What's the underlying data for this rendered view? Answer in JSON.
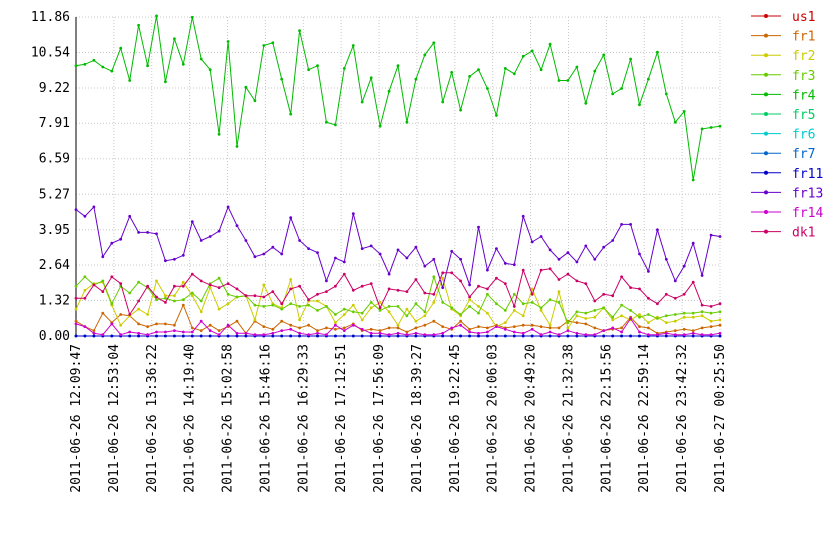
{
  "chart_data": {
    "type": "line",
    "title": "",
    "xlabel": "",
    "ylabel": "",
    "ylim": [
      0,
      11.86
    ],
    "yticks": [
      "0.00",
      "1.32",
      "2.64",
      "3.95",
      "5.27",
      "6.59",
      "7.91",
      "9.22",
      "10.54",
      "11.86"
    ],
    "ytick_values": [
      0,
      1.32,
      2.64,
      3.95,
      5.27,
      6.59,
      7.91,
      9.22,
      10.54,
      11.86
    ],
    "xticks": [
      "2011-06-26 12:09:47",
      "2011-06-26 12:53:04",
      "2011-06-26 13:36:22",
      "2011-06-26 14:19:40",
      "2011-06-26 15:02:58",
      "2011-06-26 15:46:16",
      "2011-06-26 16:29:33",
      "2011-06-26 17:12:51",
      "2011-06-26 17:56:09",
      "2011-06-26 18:39:27",
      "2011-06-26 19:22:45",
      "2011-06-26 20:06:03",
      "2011-06-26 20:49:20",
      "2011-06-26 21:32:38",
      "2011-06-26 22:15:56",
      "2011-06-26 22:59:14",
      "2011-06-26 23:42:32",
      "2011-06-27 00:25:50"
    ],
    "grid": true,
    "legend_position": "right",
    "points_per_series": 73,
    "series": [
      {
        "name": "us1",
        "color": "#cc0000",
        "values": [
          0,
          0,
          0,
          0,
          0,
          0,
          0,
          0,
          0,
          0,
          0,
          0,
          0,
          0,
          0,
          0,
          0,
          0,
          0,
          0,
          0,
          0,
          0,
          0,
          0,
          0,
          0,
          0,
          0,
          0,
          0,
          0,
          0,
          0,
          0,
          0,
          0,
          0,
          0,
          0,
          0,
          0,
          0,
          0,
          0,
          0,
          0,
          0,
          0,
          0,
          0,
          0,
          0,
          0,
          0,
          0,
          0,
          0,
          0,
          0,
          0,
          0,
          0,
          0,
          0,
          0,
          0,
          0,
          0,
          0,
          0,
          0,
          0
        ]
      },
      {
        "name": "fr1",
        "color": "#cc6600",
        "values": [
          0.55,
          0.35,
          0.2,
          0.85,
          0.5,
          0.8,
          0.75,
          0.45,
          0.35,
          0.45,
          0.45,
          0.4,
          1.15,
          0.3,
          0.2,
          0.4,
          0.2,
          0.35,
          0.55,
          0.1,
          0.55,
          0.35,
          0.25,
          0.55,
          0.4,
          0.3,
          0.4,
          0.2,
          0.3,
          0.25,
          0.3,
          0.45,
          0.2,
          0.25,
          0.2,
          0.3,
          0.3,
          0.15,
          0.3,
          0.4,
          0.55,
          0.35,
          0.25,
          0.55,
          0.25,
          0.35,
          0.3,
          0.4,
          0.3,
          0.35,
          0.4,
          0.4,
          0.35,
          0.3,
          0.3,
          0.55,
          0.5,
          0.45,
          0.3,
          0.2,
          0.25,
          0.3,
          0.7,
          0.35,
          0.3,
          0.1,
          0.15,
          0.2,
          0.25,
          0.2,
          0.3,
          0.35,
          0.4
        ]
      },
      {
        "name": "fr2",
        "color": "#cccc00",
        "values": [
          1.0,
          1.7,
          1.95,
          2.0,
          1.15,
          0.4,
          0.75,
          1.0,
          0.8,
          2.05,
          1.5,
          1.5,
          2.0,
          1.5,
          0.9,
          1.8,
          1.0,
          1.2,
          1.45,
          1.5,
          0.6,
          1.9,
          1.2,
          1.05,
          2.1,
          0.6,
          1.3,
          1.3,
          1.1,
          0.5,
          0.8,
          1.15,
          0.6,
          1.05,
          1.25,
          0.9,
          0.4,
          1.0,
          0.55,
          0.75,
          1.25,
          2.15,
          1.0,
          0.75,
          1.35,
          1.1,
          0.85,
          0.35,
          0.5,
          0.95,
          0.75,
          1.75,
          0.95,
          0.4,
          1.65,
          0.3,
          0.75,
          0.65,
          0.7,
          1.05,
          0.6,
          0.75,
          0.6,
          0.8,
          0.5,
          0.7,
          0.5,
          0.55,
          0.7,
          0.7,
          0.75,
          0.55,
          0.6
        ]
      },
      {
        "name": "fr3",
        "color": "#66cc00",
        "values": [
          1.85,
          2.2,
          1.9,
          2.05,
          1.2,
          1.85,
          1.6,
          2.0,
          1.8,
          1.35,
          1.4,
          1.3,
          1.35,
          1.6,
          1.3,
          1.95,
          2.15,
          1.55,
          1.45,
          1.5,
          1.15,
          1.1,
          1.15,
          1.0,
          1.2,
          1.1,
          1.15,
          0.95,
          1.1,
          0.8,
          1.0,
          0.9,
          0.85,
          1.25,
          0.95,
          1.1,
          1.1,
          0.75,
          1.2,
          0.9,
          2.2,
          1.25,
          1.05,
          0.8,
          1.1,
          0.85,
          1.55,
          1.2,
          0.95,
          1.55,
          1.2,
          1.25,
          1.05,
          1.35,
          1.25,
          0.5,
          0.9,
          0.85,
          0.95,
          1.05,
          0.7,
          1.15,
          0.95,
          0.7,
          0.8,
          0.65,
          0.75,
          0.8,
          0.85,
          0.85,
          0.9,
          0.85,
          0.9
        ]
      },
      {
        "name": "fr4",
        "color": "#00bb00",
        "values": [
          10.05,
          10.1,
          10.25,
          10.0,
          9.85,
          10.7,
          9.5,
          11.55,
          10.05,
          11.9,
          9.45,
          11.05,
          10.1,
          11.85,
          10.3,
          9.9,
          7.5,
          10.95,
          7.05,
          9.25,
          8.75,
          10.8,
          10.9,
          9.55,
          8.25,
          11.35,
          9.9,
          10.05,
          7.95,
          7.85,
          9.95,
          10.8,
          8.7,
          9.6,
          7.8,
          9.1,
          10.05,
          7.95,
          9.55,
          10.45,
          10.9,
          8.7,
          9.8,
          8.4,
          9.65,
          9.9,
          9.2,
          8.2,
          9.95,
          9.75,
          10.4,
          10.6,
          9.9,
          10.85,
          9.5,
          9.5,
          10.0,
          8.65,
          9.85,
          10.45,
          9.0,
          9.2,
          10.3,
          8.6,
          9.55,
          10.55,
          9.0,
          7.95,
          8.35,
          5.8,
          7.7,
          7.75,
          7.8
        ]
      },
      {
        "name": "fr5",
        "color": "#00cc66",
        "values": [
          0,
          0,
          0,
          0,
          0,
          0,
          0,
          0,
          0,
          0,
          0,
          0,
          0,
          0,
          0,
          0,
          0,
          0,
          0,
          0,
          0,
          0,
          0,
          0,
          0,
          0,
          0,
          0,
          0,
          0,
          0,
          0,
          0,
          0,
          0,
          0,
          0,
          0,
          0,
          0,
          0,
          0,
          0,
          0,
          0,
          0,
          0,
          0,
          0,
          0,
          0,
          0,
          0,
          0,
          0,
          0,
          0,
          0,
          0,
          0,
          0,
          0,
          0,
          0,
          0,
          0,
          0,
          0,
          0,
          0,
          0,
          0,
          0
        ]
      },
      {
        "name": "fr6",
        "color": "#00cccc",
        "values": [
          0,
          0,
          0,
          0,
          0,
          0,
          0,
          0,
          0,
          0,
          0,
          0,
          0,
          0,
          0,
          0,
          0,
          0,
          0,
          0,
          0,
          0,
          0,
          0,
          0,
          0,
          0,
          0,
          0,
          0,
          0,
          0,
          0,
          0,
          0,
          0,
          0,
          0,
          0,
          0,
          0,
          0,
          0,
          0,
          0,
          0,
          0,
          0,
          0,
          0,
          0,
          0,
          0,
          0,
          0,
          0,
          0,
          0,
          0,
          0,
          0,
          0,
          0,
          0,
          0,
          0,
          0,
          0,
          0,
          0,
          0,
          0,
          0
        ]
      },
      {
        "name": "fr7",
        "color": "#0066cc",
        "values": [
          0,
          0,
          0,
          0,
          0,
          0,
          0,
          0,
          0,
          0,
          0,
          0,
          0,
          0,
          0,
          0,
          0,
          0,
          0,
          0,
          0,
          0,
          0,
          0,
          0,
          0,
          0,
          0,
          0,
          0,
          0,
          0,
          0,
          0,
          0,
          0,
          0,
          0,
          0,
          0,
          0,
          0,
          0,
          0,
          0,
          0,
          0,
          0,
          0,
          0,
          0,
          0,
          0,
          0,
          0,
          0,
          0,
          0,
          0,
          0,
          0,
          0,
          0,
          0,
          0,
          0,
          0,
          0,
          0,
          0,
          0,
          0,
          0
        ]
      },
      {
        "name": "fr11",
        "color": "#0000cc",
        "values": [
          0,
          0,
          0,
          0,
          0,
          0,
          0,
          0,
          0,
          0,
          0,
          0,
          0,
          0,
          0,
          0,
          0,
          0,
          0,
          0,
          0,
          0,
          0,
          0,
          0,
          0,
          0,
          0,
          0,
          0,
          0,
          0,
          0,
          0,
          0,
          0,
          0,
          0,
          0,
          0,
          0,
          0,
          0,
          0,
          0,
          0,
          0,
          0,
          0,
          0,
          0,
          0,
          0,
          0,
          0,
          0,
          0,
          0,
          0,
          0,
          0,
          0,
          0,
          0,
          0,
          0,
          0,
          0,
          0,
          0,
          0,
          0,
          0
        ]
      },
      {
        "name": "fr13",
        "color": "#6600cc",
        "values": [
          4.7,
          4.45,
          4.8,
          2.95,
          3.45,
          3.6,
          4.45,
          3.85,
          3.85,
          3.8,
          2.8,
          2.85,
          3.0,
          4.25,
          3.55,
          3.7,
          3.9,
          4.8,
          4.1,
          3.55,
          2.95,
          3.05,
          3.3,
          3.05,
          4.4,
          3.55,
          3.25,
          3.1,
          2.05,
          2.9,
          2.75,
          4.55,
          3.25,
          3.35,
          3.05,
          2.3,
          3.2,
          2.9,
          3.3,
          2.6,
          2.85,
          1.8,
          3.15,
          2.85,
          1.9,
          4.05,
          2.45,
          3.25,
          2.7,
          2.65,
          4.45,
          3.5,
          3.7,
          3.2,
          2.85,
          3.1,
          2.75,
          3.35,
          2.85,
          3.3,
          3.55,
          4.15,
          4.15,
          3.05,
          2.4,
          3.95,
          2.85,
          2.05,
          2.6,
          3.45,
          2.25,
          3.75,
          3.7
        ]
      },
      {
        "name": "fr14",
        "color": "#cc00cc",
        "values": [
          0.45,
          0.35,
          0.1,
          0.05,
          0.45,
          0.05,
          0.15,
          0.1,
          0.05,
          0.15,
          0.15,
          0.2,
          0.15,
          0.15,
          0.55,
          0.2,
          0.05,
          0.4,
          0.1,
          0.1,
          0.05,
          0.05,
          0.1,
          0.2,
          0.25,
          0.1,
          0.05,
          0.1,
          0.05,
          0.4,
          0.2,
          0.4,
          0.25,
          0.1,
          0.1,
          0.05,
          0.1,
          0.05,
          0.1,
          0.05,
          0.05,
          0.1,
          0.3,
          0.4,
          0.15,
          0.1,
          0.15,
          0.35,
          0.25,
          0.15,
          0.1,
          0.25,
          0.05,
          0.15,
          0.05,
          0.2,
          0.1,
          0.05,
          0.05,
          0.2,
          0.3,
          0.15,
          0.65,
          0.15,
          0.05,
          0.05,
          0.1,
          0.05,
          0.05,
          0.1,
          0.05,
          0.05,
          0.1
        ]
      },
      {
        "name": "dk1",
        "color": "#cc0066",
        "values": [
          1.4,
          1.4,
          1.9,
          1.65,
          2.2,
          1.95,
          0.8,
          1.3,
          1.85,
          1.45,
          1.25,
          1.85,
          1.85,
          2.3,
          2.05,
          1.9,
          1.8,
          1.95,
          1.75,
          1.5,
          1.5,
          1.45,
          1.65,
          1.2,
          1.75,
          1.85,
          1.35,
          1.55,
          1.65,
          1.85,
          2.3,
          1.7,
          1.85,
          1.95,
          1.05,
          1.75,
          1.7,
          1.65,
          2.1,
          1.6,
          1.55,
          2.35,
          2.35,
          2.05,
          1.45,
          1.85,
          1.75,
          2.15,
          1.95,
          1.1,
          2.45,
          1.55,
          2.45,
          2.5,
          2.1,
          2.3,
          2.05,
          1.95,
          1.3,
          1.55,
          1.5,
          2.2,
          1.8,
          1.75,
          1.4,
          1.2,
          1.55,
          1.4,
          1.55,
          2.0,
          1.15,
          1.1,
          1.2
        ]
      }
    ]
  }
}
